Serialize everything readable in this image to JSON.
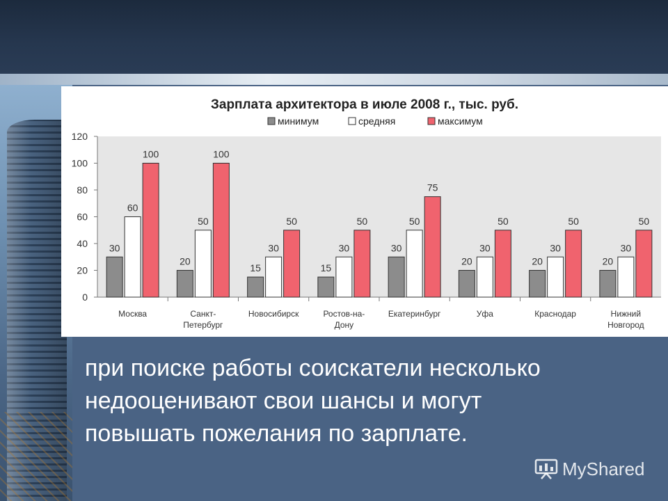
{
  "chart_data": {
    "type": "bar",
    "title": "Зарплата архитектора в июле 2008 г., тыс. руб.",
    "categories": [
      [
        "Москва"
      ],
      [
        "Санкт-",
        "Петербург"
      ],
      [
        "Новосибирск"
      ],
      [
        "Ростов-на-",
        "Дону"
      ],
      [
        "Екатеринбург"
      ],
      [
        "Уфа"
      ],
      [
        "Краснодар"
      ],
      [
        "Нижний",
        "Новгород"
      ]
    ],
    "series": [
      {
        "name": "минимум",
        "color": "#8c8c8c",
        "values": [
          30,
          20,
          15,
          15,
          30,
          20,
          20,
          20
        ]
      },
      {
        "name": "средняя",
        "color": "#ffffff",
        "values": [
          60,
          50,
          30,
          30,
          50,
          30,
          30,
          30
        ]
      },
      {
        "name": "максимум",
        "color": "#f0636e",
        "values": [
          100,
          100,
          50,
          50,
          75,
          50,
          50,
          50
        ]
      }
    ],
    "ylim": [
      0,
      120
    ],
    "yticks": [
      0,
      20,
      40,
      60,
      80,
      100,
      120
    ],
    "legend_position": "top-center",
    "plot_background": "#e6e6e6"
  },
  "caption": {
    "lines": [
      "при поиске работы соискатели несколько",
      "недооценивают свои шансы и могут",
      "повышать пожелания по зарплате."
    ]
  },
  "watermark": {
    "text": "MyShared",
    "icon": "presentation-icon"
  }
}
